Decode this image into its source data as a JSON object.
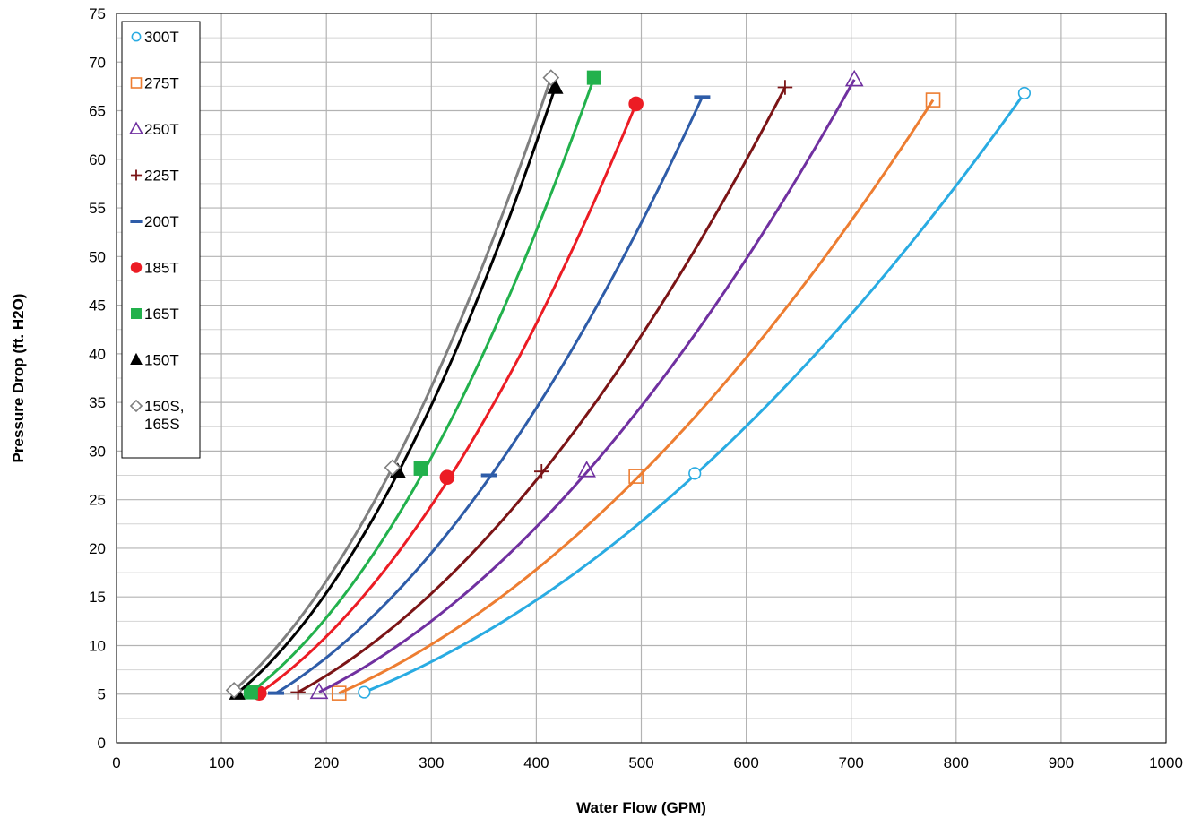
{
  "chart_data": {
    "type": "line",
    "xlabel": "Water Flow (GPM)",
    "ylabel": "Pressure Drop (ft. H2O)",
    "xlim": [
      0,
      1000
    ],
    "ylim": [
      0,
      75
    ],
    "x_ticks": [
      0,
      100,
      200,
      300,
      400,
      500,
      600,
      700,
      800,
      900,
      1000
    ],
    "y_ticks": [
      0,
      5,
      10,
      15,
      20,
      25,
      30,
      35,
      40,
      45,
      50,
      55,
      60,
      65,
      70,
      75
    ],
    "y_minor_step": 2.5,
    "grid": true,
    "legend_position": "top-left",
    "series": [
      {
        "name": "300T",
        "color": "#29abe2",
        "marker": "circle-open",
        "points": [
          [
            236,
            5.2
          ],
          [
            551,
            27.7
          ],
          [
            865,
            66.8
          ]
        ]
      },
      {
        "name": "275T",
        "color": "#ed7d31",
        "marker": "square-open",
        "points": [
          [
            212,
            5.1
          ],
          [
            495,
            27.4
          ],
          [
            778,
            66.1
          ]
        ]
      },
      {
        "name": "250T",
        "color": "#7030a0",
        "marker": "triangle-open",
        "points": [
          [
            193,
            5.2
          ],
          [
            448,
            28.0
          ],
          [
            703,
            68.2
          ]
        ]
      },
      {
        "name": "225T",
        "color": "#7b1416",
        "marker": "plus",
        "points": [
          [
            173,
            5.2
          ],
          [
            405,
            27.9
          ],
          [
            637,
            67.4
          ]
        ]
      },
      {
        "name": "200T",
        "color": "#2e5ca8",
        "marker": "dash",
        "points": [
          [
            152,
            5.1
          ],
          [
            355,
            27.5
          ],
          [
            558,
            66.4
          ]
        ]
      },
      {
        "name": "185T",
        "color": "#ec1c24",
        "marker": "circle-filled",
        "points": [
          [
            136,
            5.1
          ],
          [
            315,
            27.3
          ],
          [
            495,
            65.7
          ]
        ]
      },
      {
        "name": "165T",
        "color": "#22b14c",
        "marker": "square-filled",
        "points": [
          [
            128,
            5.2
          ],
          [
            290,
            28.2
          ],
          [
            455,
            68.4
          ]
        ]
      },
      {
        "name": "150T",
        "color": "#000000",
        "marker": "triangle-filled",
        "points": [
          [
            115,
            5.1
          ],
          [
            268,
            27.9
          ],
          [
            418,
            67.4
          ]
        ]
      },
      {
        "name": "150S, 165S",
        "color": "#7f7f7f",
        "marker": "diamond-open",
        "points": [
          [
            112,
            5.4
          ],
          [
            263,
            28.3
          ],
          [
            414,
            68.4
          ]
        ]
      }
    ]
  }
}
